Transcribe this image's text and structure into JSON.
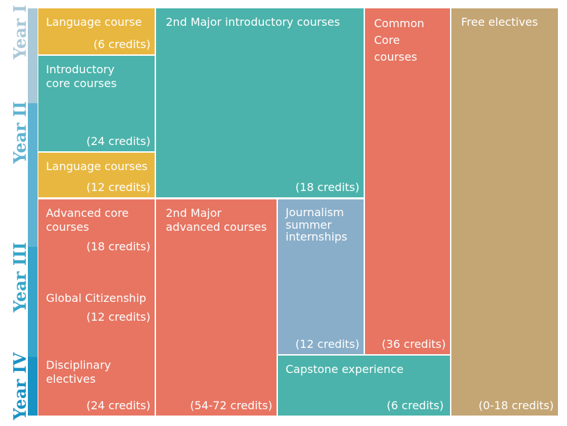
{
  "colors": {
    "yellow": "#e8b73f",
    "teal": "#4bb3ab",
    "coral": "#e77562",
    "blue": "#89aec9",
    "tan": "#c4a574",
    "year1": "#a9c8d8",
    "year2": "#5fb3d2",
    "year3": "#36a5c9",
    "year4": "#1992c4"
  },
  "years": {
    "y1": "Year I",
    "y2": "Year II",
    "y3": "Year III",
    "y4": "Year IV"
  },
  "blocks": {
    "language_course": {
      "title": "Language course",
      "credits": "(6 credits)"
    },
    "intro_core": {
      "title": "Introductory\ncore courses",
      "credits": "(24 credits)"
    },
    "language_courses": {
      "title": "Language courses",
      "credits": "(12 credits)"
    },
    "second_major_intro": {
      "title": "2nd Major introductory courses",
      "credits": "(18 credits)"
    },
    "common_core": {
      "title": "Common\nCore\ncourses",
      "credits": "(36 credits)"
    },
    "free_electives": {
      "title": "Free electives",
      "credits": "(0-18 credits)"
    },
    "advanced_core": {
      "title": "Advanced core\ncourses",
      "credits": "(18 credits)"
    },
    "global_citizenship": {
      "title": "Global Citizenship",
      "credits": "(12 credits)"
    },
    "disciplinary_electives": {
      "title": "Disciplinary\nelectives",
      "credits": "(24 credits)"
    },
    "second_major_advanced": {
      "title": "2nd Major\nadvanced courses",
      "credits": "(54-72 credits)"
    },
    "journalism": {
      "title": "Journalism\nsummer\ninternships",
      "credits": "(12 credits)"
    },
    "capstone": {
      "title": "Capstone experience",
      "credits": "(6 credits)"
    }
  }
}
